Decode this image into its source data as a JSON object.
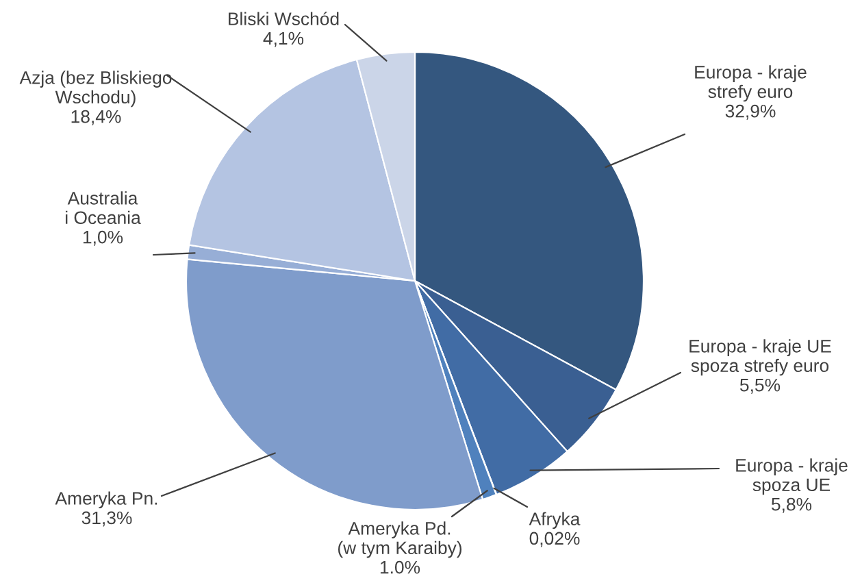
{
  "chart_data": {
    "type": "pie",
    "categories": [
      "Europa - kraje\nstrefy euro",
      "Europa - kraje UE\nspoza strefy euro",
      "Europa - kraje\nspoza UE",
      "Afryka",
      "Ameryka Pd.\n(w tym Karaiby)",
      "Ameryka Pn.",
      "Australia\ni Oceania",
      "Azja (bez Bliskiego\nWschodu)",
      "Bliski Wschód"
    ],
    "values": [
      32.9,
      5.5,
      5.8,
      0.02,
      1.0,
      31.3,
      1.0,
      18.4,
      4.1
    ],
    "value_labels": [
      "32,9%",
      "5,5%",
      "5,8%",
      "0,02%",
      "1.0%",
      "31,3%",
      "1,0%",
      "18,4%",
      "4,1%"
    ],
    "colors": [
      "#34577f",
      "#3a5f92",
      "#416ca5",
      "#4577b3",
      "#4f81bd",
      "#7f9ccb",
      "#97aed6",
      "#b4c4e2",
      "#cbd5e8"
    ]
  }
}
